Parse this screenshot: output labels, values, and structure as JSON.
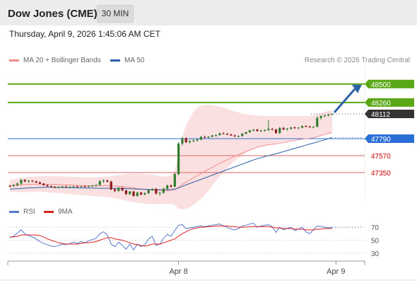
{
  "header": {
    "title": "Dow Jones (CME)",
    "timeframe": "30 MIN"
  },
  "datetime": "Thursday, April 9, 2026 1:45:06 AM CET",
  "legend": [
    {
      "label": "MA 20 + Bollinger Bands",
      "color": "#f28b8b"
    },
    {
      "label": "MA 50",
      "color": "#2d5fa8"
    }
  ],
  "credit": "Research © 2026 Trading Central",
  "rsi_legend": [
    {
      "label": "RSI",
      "color": "#5577cc"
    },
    {
      "label": "9MA",
      "color": "#dd2222"
    }
  ],
  "colors": {
    "up": "#2e7d2e",
    "down": "#8b1a1a",
    "target": "#5aa817",
    "pivot": "#2a6fd6",
    "support": "#e06666",
    "last": "#333333",
    "arrow": "#2e62a8"
  },
  "chart_data": {
    "type": "candlestick",
    "price_ylim": [
      47000,
      48700
    ],
    "last_price": 48112,
    "levels": [
      {
        "label": "48500",
        "value": 48500,
        "kind": "target"
      },
      {
        "label": "48260",
        "value": 48260,
        "kind": "target"
      },
      {
        "label": "48112",
        "value": 48112,
        "kind": "last"
      },
      {
        "label": "47790",
        "value": 47790,
        "kind": "pivot"
      },
      {
        "label": "47570",
        "value": 47570,
        "kind": "support"
      },
      {
        "label": "47350",
        "value": 47350,
        "kind": "support"
      }
    ],
    "x_labels": [
      "Apr 8",
      "Apr 9"
    ],
    "x_label_index": [
      45,
      87
    ],
    "candles": [
      [
        47178,
        47192,
        47158,
        47176
      ],
      [
        47176,
        47202,
        47164,
        47188
      ],
      [
        47188,
        47224,
        47172,
        47208
      ],
      [
        47208,
        47268,
        47190,
        47255
      ],
      [
        47255,
        47264,
        47222,
        47238
      ],
      [
        47238,
        47254,
        47218,
        47244
      ],
      [
        47244,
        47252,
        47226,
        47236
      ],
      [
        47236,
        47246,
        47214,
        47222
      ],
      [
        47222,
        47232,
        47198,
        47206
      ],
      [
        47206,
        47216,
        47178,
        47186
      ],
      [
        47186,
        47198,
        47164,
        47172
      ],
      [
        47172,
        47184,
        47156,
        47166
      ],
      [
        47166,
        47174,
        47146,
        47158
      ],
      [
        47158,
        47170,
        47142,
        47164
      ],
      [
        47164,
        47176,
        47150,
        47168
      ],
      [
        47168,
        47178,
        47154,
        47162
      ],
      [
        47162,
        47172,
        47148,
        47166
      ],
      [
        47166,
        47180,
        47152,
        47170
      ],
      [
        47170,
        47182,
        47158,
        47164
      ],
      [
        47164,
        47176,
        47150,
        47172
      ],
      [
        47172,
        47186,
        47158,
        47168
      ],
      [
        47168,
        47180,
        47154,
        47176
      ],
      [
        47176,
        47190,
        47162,
        47182
      ],
      [
        47182,
        47196,
        47168,
        47190
      ],
      [
        47190,
        47255,
        47176,
        47238
      ],
      [
        47238,
        47262,
        47218,
        47246
      ],
      [
        47246,
        47258,
        47222,
        47232
      ],
      [
        47232,
        47244,
        47120,
        47132
      ],
      [
        47132,
        47150,
        47094,
        47112
      ],
      [
        47112,
        47164,
        47100,
        47152
      ],
      [
        47152,
        47162,
        47108,
        47118
      ],
      [
        47118,
        47130,
        47060,
        47070
      ],
      [
        47070,
        47112,
        47058,
        47104
      ],
      [
        47104,
        47114,
        47036,
        47046
      ],
      [
        47046,
        47102,
        47036,
        47090
      ],
      [
        47090,
        47102,
        47054,
        47066
      ],
      [
        47066,
        47096,
        47054,
        47082
      ],
      [
        47082,
        47136,
        47070,
        47124
      ],
      [
        47124,
        47146,
        47110,
        47138
      ],
      [
        47138,
        47150,
        47064,
        47078
      ],
      [
        47078,
        47096,
        47050,
        47088
      ],
      [
        47088,
        47154,
        47076,
        47140
      ],
      [
        47140,
        47194,
        47126,
        47182
      ],
      [
        47182,
        47196,
        47152,
        47168
      ],
      [
        47168,
        47346,
        47156,
        47330
      ],
      [
        47330,
        47742,
        47316,
        47728
      ],
      [
        47728,
        47812,
        47700,
        47796
      ],
      [
        47796,
        47808,
        47732,
        47744
      ],
      [
        47744,
        47770,
        47728,
        47758
      ],
      [
        47758,
        47782,
        47742,
        47768
      ],
      [
        47768,
        47790,
        47752,
        47780
      ],
      [
        47780,
        47826,
        47768,
        47812
      ],
      [
        47812,
        47830,
        47796,
        47808
      ],
      [
        47808,
        47824,
        47792,
        47816
      ],
      [
        47816,
        47840,
        47806,
        47832
      ],
      [
        47832,
        47846,
        47816,
        47838
      ],
      [
        47838,
        47868,
        47828,
        47860
      ],
      [
        47860,
        47874,
        47846,
        47852
      ],
      [
        47852,
        47866,
        47836,
        47844
      ],
      [
        47844,
        47856,
        47826,
        47832
      ],
      [
        47832,
        47842,
        47812,
        47820
      ],
      [
        47820,
        47832,
        47808,
        47826
      ],
      [
        47826,
        47862,
        47814,
        47856
      ],
      [
        47856,
        47882,
        47846,
        47874
      ],
      [
        47874,
        47904,
        47866,
        47898
      ],
      [
        47898,
        47916,
        47884,
        47908
      ],
      [
        47908,
        47918,
        47882,
        47890
      ],
      [
        47890,
        47904,
        47876,
        47896
      ],
      [
        47896,
        47910,
        47882,
        47902
      ],
      [
        47902,
        48030,
        47890,
        47918
      ],
      [
        47918,
        47930,
        47896,
        47908
      ],
      [
        47908,
        47920,
        47852,
        47866
      ],
      [
        47866,
        47942,
        47850,
        47930
      ],
      [
        47930,
        47942,
        47900,
        47912
      ],
      [
        47912,
        47928,
        47896,
        47920
      ],
      [
        47920,
        47944,
        47906,
        47936
      ],
      [
        47936,
        47948,
        47918,
        47926
      ],
      [
        47926,
        47940,
        47914,
        47934
      ],
      [
        47934,
        47962,
        47924,
        47954
      ],
      [
        47954,
        47966,
        47938,
        47946
      ],
      [
        47946,
        47958,
        47932,
        47940
      ],
      [
        47940,
        47952,
        47926,
        47946
      ],
      [
        47946,
        48080,
        47936,
        48060
      ],
      [
        48060,
        48092,
        48040,
        48084
      ],
      [
        48084,
        48100,
        48070,
        48092
      ],
      [
        48092,
        48110,
        48080,
        48104
      ],
      [
        48104,
        48118,
        48092,
        48112
      ]
    ],
    "ma20": [
      47176,
      47180,
      47185,
      47191,
      47194,
      47196,
      47198,
      47200,
      47201,
      47200,
      47199,
      47197,
      47195,
      47193,
      47191,
      47189,
      47187,
      47185,
      47183,
      47181,
      47179,
      47178,
      47177,
      47177,
      47178,
      47180,
      47181,
      47179,
      47175,
      47172,
      47168,
      47162,
      47157,
      47150,
      47143,
      47137,
      47131,
      47126,
      47123,
      47120,
      47117,
      47116,
      47117,
      47118,
      47128,
      47160,
      47195,
      47226,
      47255,
      47283,
      47310,
      47338,
      47366,
      47393,
      47419,
      47444,
      47470,
      47494,
      47517,
      47540,
      47562,
      47583,
      47604,
      47624,
      47643,
      47661,
      47678,
      47691,
      47701,
      47712,
      47718,
      47722,
      47730,
      47740,
      47750,
      47760,
      47768,
      47776,
      47784,
      47790,
      47796,
      47804,
      47818,
      47832,
      47846,
      47858,
      47870
    ],
    "bb_upper": [
      47250,
      47262,
      47274,
      47286,
      47292,
      47296,
      47298,
      47300,
      47302,
      47303,
      47304,
      47304,
      47303,
      47302,
      47300,
      47298,
      47296,
      47294,
      47293,
      47292,
      47291,
      47290,
      47290,
      47290,
      47292,
      47296,
      47300,
      47306,
      47312,
      47318,
      47324,
      47330,
      47334,
      47336,
      47336,
      47334,
      47330,
      47326,
      47320,
      47312,
      47306,
      47300,
      47300,
      47310,
      47380,
      47600,
      47820,
      47960,
      48060,
      48140,
      48190,
      48220,
      48230,
      48232,
      48226,
      48218,
      48206,
      48192,
      48176,
      48160,
      48144,
      48130,
      48118,
      48108,
      48100,
      48094,
      48090,
      48088,
      48086,
      48086,
      48086,
      48086,
      48086,
      48086,
      48086,
      48086,
      48086,
      48086,
      48086,
      48086,
      48088,
      48092,
      48108,
      48124,
      48138,
      48150,
      48160
    ],
    "bb_lower": [
      47100,
      47098,
      47096,
      47096,
      47096,
      47096,
      47098,
      47100,
      47100,
      47098,
      47094,
      47090,
      47086,
      47082,
      47078,
      47074,
      47070,
      47066,
      47062,
      47058,
      47054,
      47050,
      47046,
      47042,
      47038,
      47034,
      47030,
      47024,
      47016,
      47006,
      46996,
      46986,
      46976,
      46966,
      46958,
      46952,
      46946,
      46942,
      46940,
      46940,
      46940,
      46940,
      46942,
      46946,
      46930,
      46880,
      46870,
      46880,
      46900,
      46930,
      46970,
      47010,
      47060,
      47120,
      47180,
      47240,
      47300,
      47356,
      47408,
      47456,
      47500,
      47540,
      47576,
      47608,
      47636,
      47660,
      47680,
      47694,
      47706,
      47716,
      47724,
      47730,
      47740,
      47750,
      47760,
      47770,
      47778,
      47786,
      47794,
      47800,
      47806,
      47812,
      47822,
      47832,
      47842,
      47852,
      47860
    ],
    "ma50": [
      47136,
      47138,
      47141,
      47144,
      47147,
      47150,
      47152,
      47154,
      47156,
      47157,
      47158,
      47158,
      47158,
      47157,
      47156,
      47155,
      47154,
      47153,
      47152,
      47151,
      47150,
      47149,
      47148,
      47147,
      47146,
      47146,
      47146,
      47146,
      47145,
      47144,
      47143,
      47142,
      47140,
      47138,
      47136,
      47134,
      47132,
      47130,
      47129,
      47128,
      47127,
      47127,
      47128,
      47130,
      47136,
      47150,
      47170,
      47190,
      47208,
      47226,
      47244,
      47262,
      47280,
      47298,
      47316,
      47334,
      47352,
      47370,
      47388,
      47406,
      47424,
      47442,
      47460,
      47478,
      47496,
      47514,
      47530,
      47544,
      47558,
      47570,
      47582,
      47594,
      47608,
      47622,
      47636,
      47650,
      47664,
      47678,
      47692,
      47706,
      47720,
      47734,
      47748,
      47762,
      47776,
      47790,
      47804
    ],
    "rsi_ylim": [
      20,
      80
    ],
    "rsi_ticks": [
      70,
      50,
      30
    ],
    "rsi": [
      54,
      56,
      61,
      66,
      60,
      57,
      55,
      52,
      48,
      45,
      43,
      41,
      40,
      42,
      44,
      43,
      45,
      47,
      45,
      48,
      46,
      49,
      51,
      53,
      60,
      63,
      58,
      44,
      40,
      47,
      42,
      36,
      44,
      35,
      44,
      40,
      43,
      52,
      56,
      42,
      44,
      53,
      59,
      56,
      65,
      73,
      74,
      68,
      69,
      70,
      71,
      72,
      71,
      72,
      73,
      74,
      75,
      72,
      70,
      67,
      66,
      68,
      72,
      73,
      75,
      76,
      70,
      72,
      73,
      74,
      71,
      62,
      70,
      66,
      68,
      70,
      65,
      67,
      70,
      63,
      60,
      66,
      72,
      71,
      70,
      69,
      70
    ],
    "rsi_ma": [
      55,
      55,
      56,
      58,
      58,
      58,
      58,
      58,
      57,
      55,
      52,
      50,
      48,
      46,
      45,
      44,
      44,
      44,
      44,
      45,
      46,
      46,
      47,
      48,
      50,
      52,
      54,
      54,
      52,
      51,
      50,
      48,
      46,
      44,
      43,
      42,
      41,
      42,
      44,
      44,
      44,
      46,
      48,
      50,
      52,
      56,
      60,
      63,
      66,
      68,
      69,
      70,
      70,
      71,
      71,
      72,
      72,
      72,
      72,
      71,
      71,
      70,
      70,
      70,
      71,
      71,
      71,
      71,
      71,
      71,
      70,
      69,
      69,
      68,
      68,
      68,
      67,
      67,
      67,
      66,
      66,
      66,
      67,
      67,
      68,
      68,
      68
    ]
  }
}
